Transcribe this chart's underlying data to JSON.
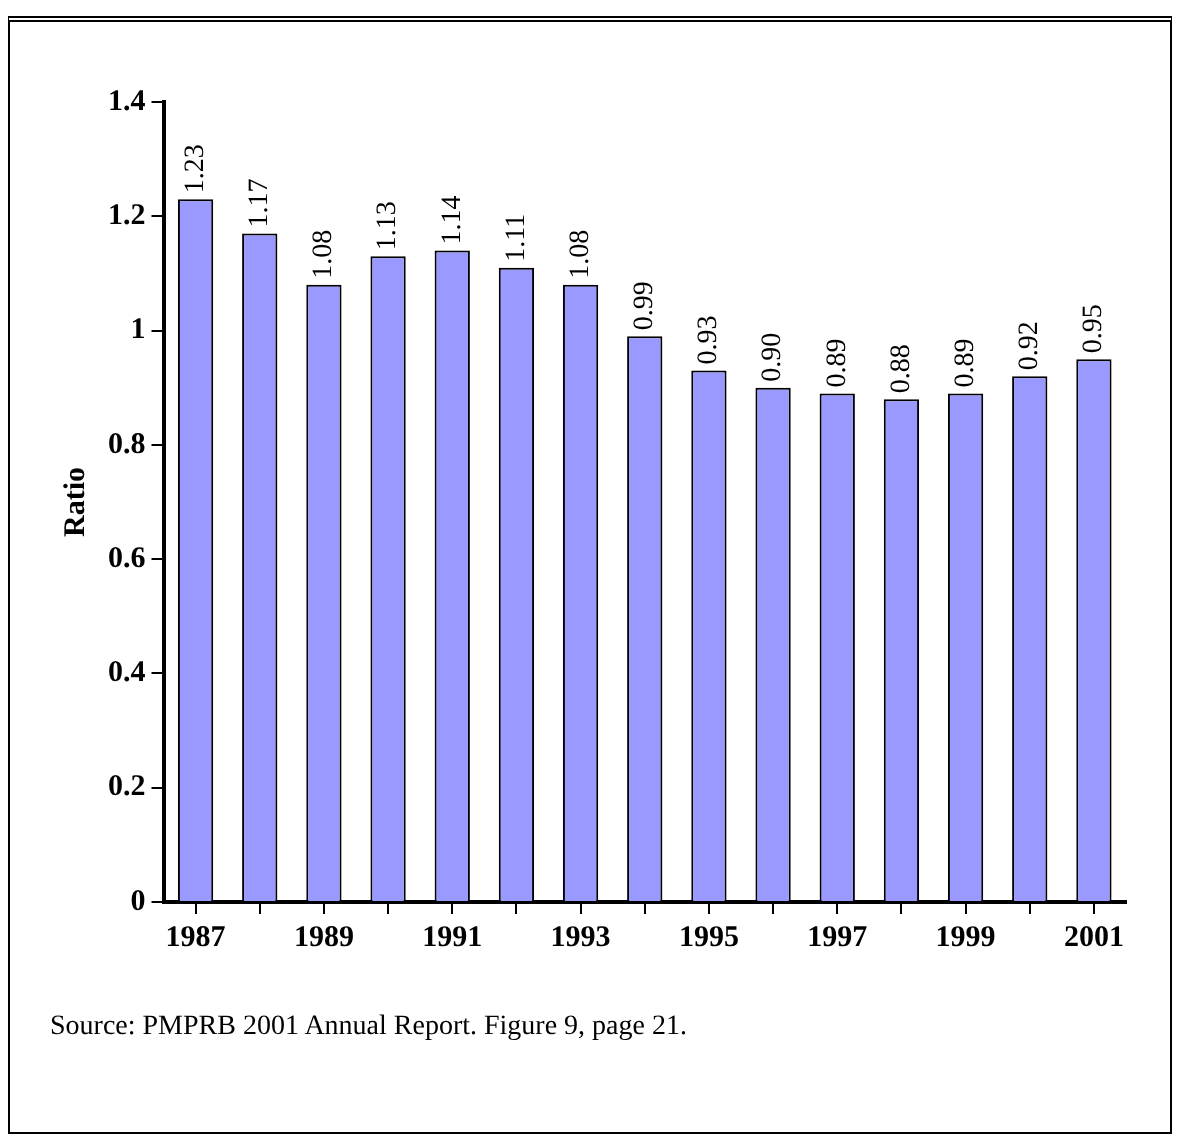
{
  "chart_data": {
    "type": "bar",
    "ylabel": "Ratio",
    "categories": [
      "1987",
      null,
      "1989",
      null,
      "1991",
      null,
      "1993",
      null,
      "1995",
      null,
      "1997",
      null,
      "1999",
      null,
      "2001"
    ],
    "values": [
      1.23,
      1.17,
      1.08,
      1.13,
      1.14,
      1.11,
      1.08,
      0.99,
      0.93,
      0.9,
      0.89,
      0.88,
      0.89,
      0.92,
      0.95
    ],
    "value_labels": [
      "1.23",
      "1.17",
      "1.08",
      "1.13",
      "1.14",
      "1.11",
      "1.08",
      "0.99",
      "0.93",
      "0.90",
      "0.89",
      "0.88",
      "0.89",
      "0.92",
      "0.95"
    ],
    "color": "#9999ff",
    "ylim": [
      0,
      1.4
    ],
    "yticks": [
      0,
      0.2,
      0.4,
      0.6,
      0.8,
      1,
      1.2,
      1.4
    ],
    "grid": false,
    "legend": false,
    "annotations": [
      "Source: PMPRB 2001 Annual Report. Figure 9, page 21."
    ]
  }
}
